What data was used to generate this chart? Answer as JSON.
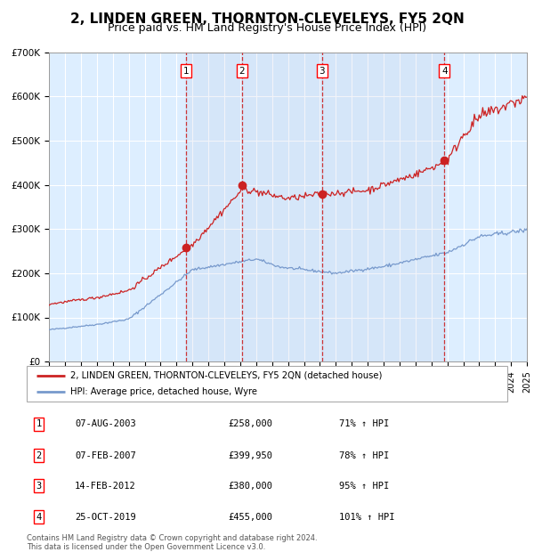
{
  "title": "2, LINDEN GREEN, THORNTON-CLEVELEYS, FY5 2QN",
  "subtitle": "Price paid vs. HM Land Registry's House Price Index (HPI)",
  "title_fontsize": 11,
  "subtitle_fontsize": 9,
  "x_start_year": 1995,
  "x_end_year": 2025,
  "y_min": 0,
  "y_max": 700000,
  "y_ticks": [
    0,
    100000,
    200000,
    300000,
    400000,
    500000,
    600000,
    700000
  ],
  "y_tick_labels": [
    "£0",
    "£100K",
    "£200K",
    "£300K",
    "£400K",
    "£500K",
    "£600K",
    "£700K"
  ],
  "hpi_color": "#7799cc",
  "price_color": "#cc2222",
  "bg_color": "#ddeeff",
  "grid_color": "#ffffff",
  "sale_dates": [
    2003.59,
    2007.09,
    2012.12,
    2019.81
  ],
  "sale_prices": [
    258000,
    399950,
    380000,
    455000
  ],
  "sale_labels": [
    "1",
    "2",
    "3",
    "4"
  ],
  "vline_color": "#cc2222",
  "sale_dot_color": "#cc2222",
  "legend_price_label": "2, LINDEN GREEN, THORNTON-CLEVELEYS, FY5 2QN (detached house)",
  "legend_hpi_label": "HPI: Average price, detached house, Wyre",
  "table_rows": [
    {
      "num": "1",
      "date": "07-AUG-2003",
      "price": "£258,000",
      "hpi": "71% ↑ HPI"
    },
    {
      "num": "2",
      "date": "07-FEB-2007",
      "price": "£399,950",
      "hpi": "78% ↑ HPI"
    },
    {
      "num": "3",
      "date": "14-FEB-2012",
      "price": "£380,000",
      "hpi": "95% ↑ HPI"
    },
    {
      "num": "4",
      "date": "25-OCT-2019",
      "price": "£455,000",
      "hpi": "101% ↑ HPI"
    }
  ],
  "footnote": "Contains HM Land Registry data © Crown copyright and database right 2024.\nThis data is licensed under the Open Government Licence v3.0."
}
